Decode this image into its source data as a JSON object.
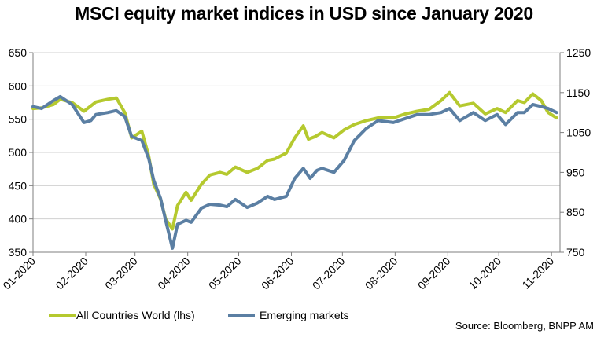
{
  "chart_data": {
    "type": "line",
    "title": "MSCI equity market indices in USD since January 2020",
    "source": "Source: Bloomberg, BNPP AM",
    "x_tick_labels": [
      "01-2020",
      "02-2020",
      "03-2020",
      "04-2020",
      "05-2020",
      "06-2020",
      "07-2020",
      "08-2020",
      "09-2020",
      "10-2020",
      "11-2020"
    ],
    "x_ticks": [
      "2020-01-01",
      "2020-02-01",
      "2020-03-01",
      "2020-04-01",
      "2020-05-01",
      "2020-06-01",
      "2020-07-01",
      "2020-08-01",
      "2020-09-01",
      "2020-10-01",
      "2020-11-01"
    ],
    "xlim": [
      "2020-01-01",
      "2020-11-06"
    ],
    "y_left": {
      "ylim": [
        350,
        650
      ],
      "ticks": [
        350,
        400,
        450,
        500,
        550,
        600,
        650
      ]
    },
    "y_right": {
      "ylim": [
        750,
        1250
      ],
      "ticks": [
        750,
        850,
        950,
        1050,
        1150,
        1250
      ]
    },
    "grid": "horizontal",
    "legend_position": "bottom-left",
    "series": [
      {
        "name": "All Countries World (lhs)",
        "axis": "left",
        "color": "#b5c92f",
        "points": [
          [
            "2020-01-01",
            566
          ],
          [
            "2020-01-06",
            567
          ],
          [
            "2020-01-13",
            572
          ],
          [
            "2020-01-17",
            580
          ],
          [
            "2020-01-24",
            575
          ],
          [
            "2020-01-31",
            562
          ],
          [
            "2020-02-07",
            576
          ],
          [
            "2020-02-14",
            580
          ],
          [
            "2020-02-19",
            582
          ],
          [
            "2020-02-24",
            560
          ],
          [
            "2020-02-28",
            522
          ],
          [
            "2020-03-05",
            532
          ],
          [
            "2020-03-09",
            495
          ],
          [
            "2020-03-12",
            452
          ],
          [
            "2020-03-16",
            430
          ],
          [
            "2020-03-19",
            400
          ],
          [
            "2020-03-23",
            385
          ],
          [
            "2020-03-26",
            420
          ],
          [
            "2020-03-31",
            440
          ],
          [
            "2020-04-03",
            428
          ],
          [
            "2020-04-09",
            452
          ],
          [
            "2020-04-14",
            466
          ],
          [
            "2020-04-20",
            470
          ],
          [
            "2020-04-24",
            467
          ],
          [
            "2020-04-29",
            478
          ],
          [
            "2020-05-06",
            470
          ],
          [
            "2020-05-12",
            476
          ],
          [
            "2020-05-18",
            488
          ],
          [
            "2020-05-22",
            490
          ],
          [
            "2020-05-29",
            499
          ],
          [
            "2020-06-03",
            522
          ],
          [
            "2020-06-08",
            540
          ],
          [
            "2020-06-11",
            520
          ],
          [
            "2020-06-15",
            524
          ],
          [
            "2020-06-19",
            530
          ],
          [
            "2020-06-26",
            522
          ],
          [
            "2020-07-02",
            534
          ],
          [
            "2020-07-08",
            542
          ],
          [
            "2020-07-15",
            548
          ],
          [
            "2020-07-22",
            552
          ],
          [
            "2020-07-31",
            552
          ],
          [
            "2020-08-07",
            558
          ],
          [
            "2020-08-14",
            562
          ],
          [
            "2020-08-21",
            565
          ],
          [
            "2020-08-28",
            578
          ],
          [
            "2020-09-02",
            590
          ],
          [
            "2020-09-08",
            570
          ],
          [
            "2020-09-16",
            574
          ],
          [
            "2020-09-23",
            558
          ],
          [
            "2020-09-30",
            566
          ],
          [
            "2020-10-05",
            560
          ],
          [
            "2020-10-12",
            578
          ],
          [
            "2020-10-16",
            575
          ],
          [
            "2020-10-21",
            588
          ],
          [
            "2020-10-26",
            578
          ],
          [
            "2020-10-30",
            560
          ],
          [
            "2020-11-04",
            552
          ]
        ]
      },
      {
        "name": "Emerging markets",
        "axis": "right",
        "color": "#5b7fa3",
        "points": [
          [
            "2020-01-01",
            1115
          ],
          [
            "2020-01-06",
            1110
          ],
          [
            "2020-01-13",
            1130
          ],
          [
            "2020-01-17",
            1140
          ],
          [
            "2020-01-24",
            1120
          ],
          [
            "2020-01-31",
            1075
          ],
          [
            "2020-02-04",
            1080
          ],
          [
            "2020-02-07",
            1095
          ],
          [
            "2020-02-14",
            1100
          ],
          [
            "2020-02-19",
            1105
          ],
          [
            "2020-02-24",
            1090
          ],
          [
            "2020-02-28",
            1040
          ],
          [
            "2020-03-05",
            1030
          ],
          [
            "2020-03-09",
            985
          ],
          [
            "2020-03-12",
            930
          ],
          [
            "2020-03-16",
            885
          ],
          [
            "2020-03-19",
            830
          ],
          [
            "2020-03-23",
            760
          ],
          [
            "2020-03-26",
            820
          ],
          [
            "2020-03-31",
            830
          ],
          [
            "2020-04-03",
            825
          ],
          [
            "2020-04-09",
            860
          ],
          [
            "2020-04-14",
            870
          ],
          [
            "2020-04-20",
            868
          ],
          [
            "2020-04-24",
            864
          ],
          [
            "2020-04-29",
            882
          ],
          [
            "2020-05-06",
            862
          ],
          [
            "2020-05-12",
            873
          ],
          [
            "2020-05-18",
            890
          ],
          [
            "2020-05-22",
            882
          ],
          [
            "2020-05-29",
            890
          ],
          [
            "2020-06-03",
            935
          ],
          [
            "2020-06-08",
            960
          ],
          [
            "2020-06-12",
            935
          ],
          [
            "2020-06-16",
            955
          ],
          [
            "2020-06-19",
            960
          ],
          [
            "2020-06-26",
            950
          ],
          [
            "2020-07-02",
            980
          ],
          [
            "2020-07-08",
            1030
          ],
          [
            "2020-07-15",
            1060
          ],
          [
            "2020-07-22",
            1080
          ],
          [
            "2020-07-31",
            1075
          ],
          [
            "2020-08-07",
            1085
          ],
          [
            "2020-08-14",
            1095
          ],
          [
            "2020-08-21",
            1095
          ],
          [
            "2020-08-28",
            1100
          ],
          [
            "2020-09-02",
            1110
          ],
          [
            "2020-09-08",
            1080
          ],
          [
            "2020-09-16",
            1100
          ],
          [
            "2020-09-23",
            1080
          ],
          [
            "2020-09-30",
            1095
          ],
          [
            "2020-10-05",
            1070
          ],
          [
            "2020-10-12",
            1100
          ],
          [
            "2020-10-16",
            1100
          ],
          [
            "2020-10-21",
            1120
          ],
          [
            "2020-10-26",
            1115
          ],
          [
            "2020-10-30",
            1110
          ],
          [
            "2020-11-04",
            1100
          ]
        ]
      }
    ]
  }
}
